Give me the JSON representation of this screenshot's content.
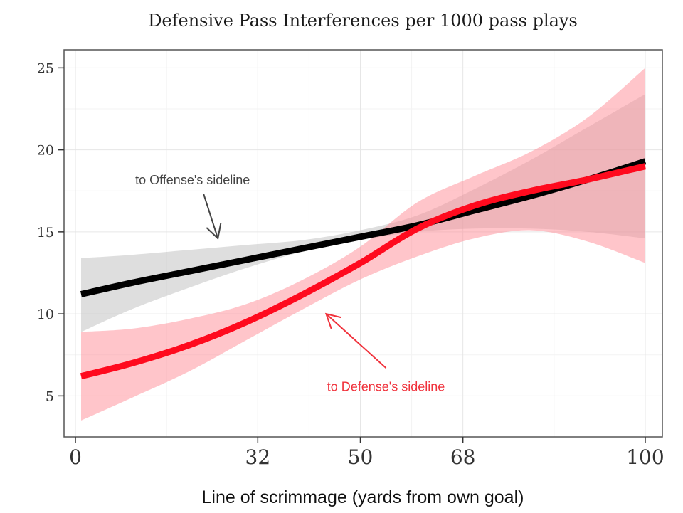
{
  "chart_data": {
    "type": "line",
    "title": "Defensive Pass Interferences per 1000 pass plays",
    "xlabel": "Line of scrimmage (yards from own goal)",
    "ylabel": "",
    "xlim": [
      -2,
      103
    ],
    "ylim": [
      2.5,
      26.1
    ],
    "x_ticks": [
      0,
      32,
      50,
      68,
      100
    ],
    "x_tick_labels": [
      "0",
      "32",
      "50",
      "68",
      "100"
    ],
    "y_ticks": [
      5,
      10,
      15,
      20,
      25
    ],
    "y_tick_labels": [
      "5",
      "10",
      "15",
      "20",
      "25"
    ],
    "grid": true,
    "legend": "none",
    "series": [
      {
        "color": "#000000",
        "band_color": "#bdbdbd",
        "x": [
          1,
          10,
          20,
          30,
          40,
          50,
          60,
          70,
          80,
          90,
          100
        ],
        "y": [
          11.2,
          11.9,
          12.6,
          13.3,
          14.0,
          14.7,
          15.4,
          16.3,
          17.2,
          18.2,
          19.3
        ],
        "lower": [
          8.9,
          10.3,
          11.6,
          12.8,
          13.8,
          14.5,
          15.0,
          15.2,
          15.2,
          15.0,
          14.6
        ],
        "upper": [
          13.4,
          13.6,
          13.9,
          14.2,
          14.5,
          15.1,
          16.0,
          17.6,
          19.4,
          21.4,
          23.4
        ]
      },
      {
        "color": "#ff0a1e",
        "band_color": "#ff8c96",
        "x": [
          1,
          10,
          20,
          30,
          40,
          50,
          60,
          70,
          80,
          90,
          100
        ],
        "y": [
          6.2,
          7.0,
          8.1,
          9.5,
          11.2,
          13.1,
          15.2,
          16.6,
          17.5,
          18.2,
          19.0
        ],
        "lower": [
          3.5,
          4.9,
          6.5,
          8.4,
          10.3,
          12.1,
          13.5,
          14.6,
          15.1,
          14.4,
          13.1
        ],
        "upper": [
          8.9,
          9.1,
          9.7,
          10.6,
          12.1,
          14.1,
          16.8,
          18.4,
          19.9,
          22.0,
          25.0
        ]
      }
    ],
    "annotations": [
      {
        "text": "to Offense's sideline",
        "color": "#444444",
        "tip_x": 25.0,
        "tip_y": 14.6,
        "tail_x": 22.5,
        "tail_y": 17.3,
        "text_x": 10.5,
        "text_y": 17.9
      },
      {
        "text": "to Defense's sideline",
        "color": "#f0323c",
        "tip_x": 44.0,
        "tip_y": 10.0,
        "tail_x": 54.5,
        "tail_y": 6.7,
        "text_x": 54.5,
        "text_y": 5.3
      }
    ]
  }
}
